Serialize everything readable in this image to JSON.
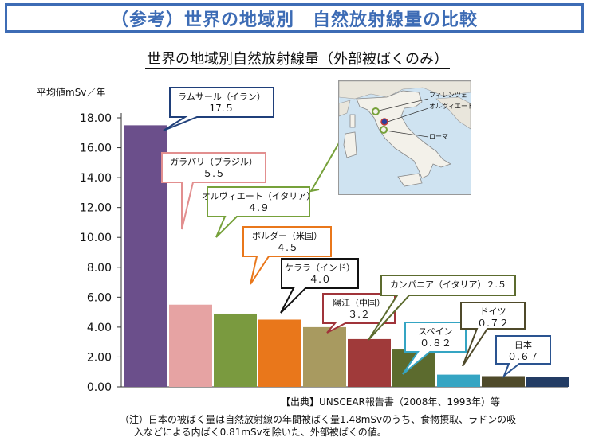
{
  "banner_title": "（参考）世界の地域別　自然放射線量の比較",
  "chart_title": "世界の地域別自然放射線量（外部被ばくのみ）",
  "source_note": "【出典】UNSCEAR報告書（2008年、1993年）等",
  "footnote": {
    "line1": "（注）日本の被ばく量は自然放射線の年間被ばく量1.48mSvのうち、食物摂取、ラドンの吸",
    "line2": "入などによる内ばく0.81mSvを除いた、外部被ばくの値。"
  },
  "map_labels": {
    "florence": "フィレンツェ",
    "orvieto": "オルヴィエート",
    "rome": "ローマ"
  },
  "chart_data": {
    "type": "bar",
    "ylabel": "平均値mSv／年",
    "ylim": [
      0,
      18
    ],
    "yticks": [
      "0.00",
      "2.00",
      "4.00",
      "6.00",
      "8.00",
      "10.00",
      "12.00",
      "14.00",
      "16.00",
      "18.00"
    ],
    "grid": false,
    "categories": [
      "ラムサール（イラン）",
      "ガラパリ（ブラジル）",
      "オルヴィエート（イタリア）",
      "ボルダー（米国）",
      "ケララ（インド）",
      "陽江（中国）",
      "カンパニア（イタリア）",
      "スペイン",
      "ドイツ",
      "日本"
    ],
    "values": [
      17.5,
      5.5,
      4.9,
      4.5,
      4.0,
      3.2,
      2.5,
      0.82,
      0.72,
      0.67
    ],
    "colors": [
      "#6b4f8b",
      "#e6a3a3",
      "#7a9a3f",
      "#e9771b",
      "#a89a60",
      "#a03a3a",
      "#5c6b2e",
      "#35a5c3",
      "#4f4a2a",
      "#233c64"
    ],
    "callouts": [
      {
        "name": "ラムサール（イラン）",
        "value_text": "17.５",
        "border": "#1f3f7a"
      },
      {
        "name": "ガラパリ（ブラジル）",
        "value_text": "５.５",
        "border": "#e28f8f"
      },
      {
        "name": "オルヴィエート（イタリア）",
        "value_text": "４.９",
        "border": "#76a13a"
      },
      {
        "name": "ボルダー（米国）",
        "value_text": "４.５",
        "border": "#e9771b"
      },
      {
        "name": "ケララ（インド）",
        "value_text": "４.０",
        "border": "#111111"
      },
      {
        "name": "陽江（中国）",
        "value_text": "３.２",
        "border": "#a0343a"
      },
      {
        "name": "カンパニア（イタリア）２.５",
        "value_text": "",
        "border": "#5c6b2e"
      },
      {
        "name": "スペイン",
        "value_text": "０.８２",
        "border": "#35a5c3"
      },
      {
        "name": "ドイツ",
        "value_text": "０.７２",
        "border": "#4f4a2a"
      },
      {
        "name": "日本",
        "value_text": "０.６７",
        "border": "#2a5390"
      }
    ]
  }
}
